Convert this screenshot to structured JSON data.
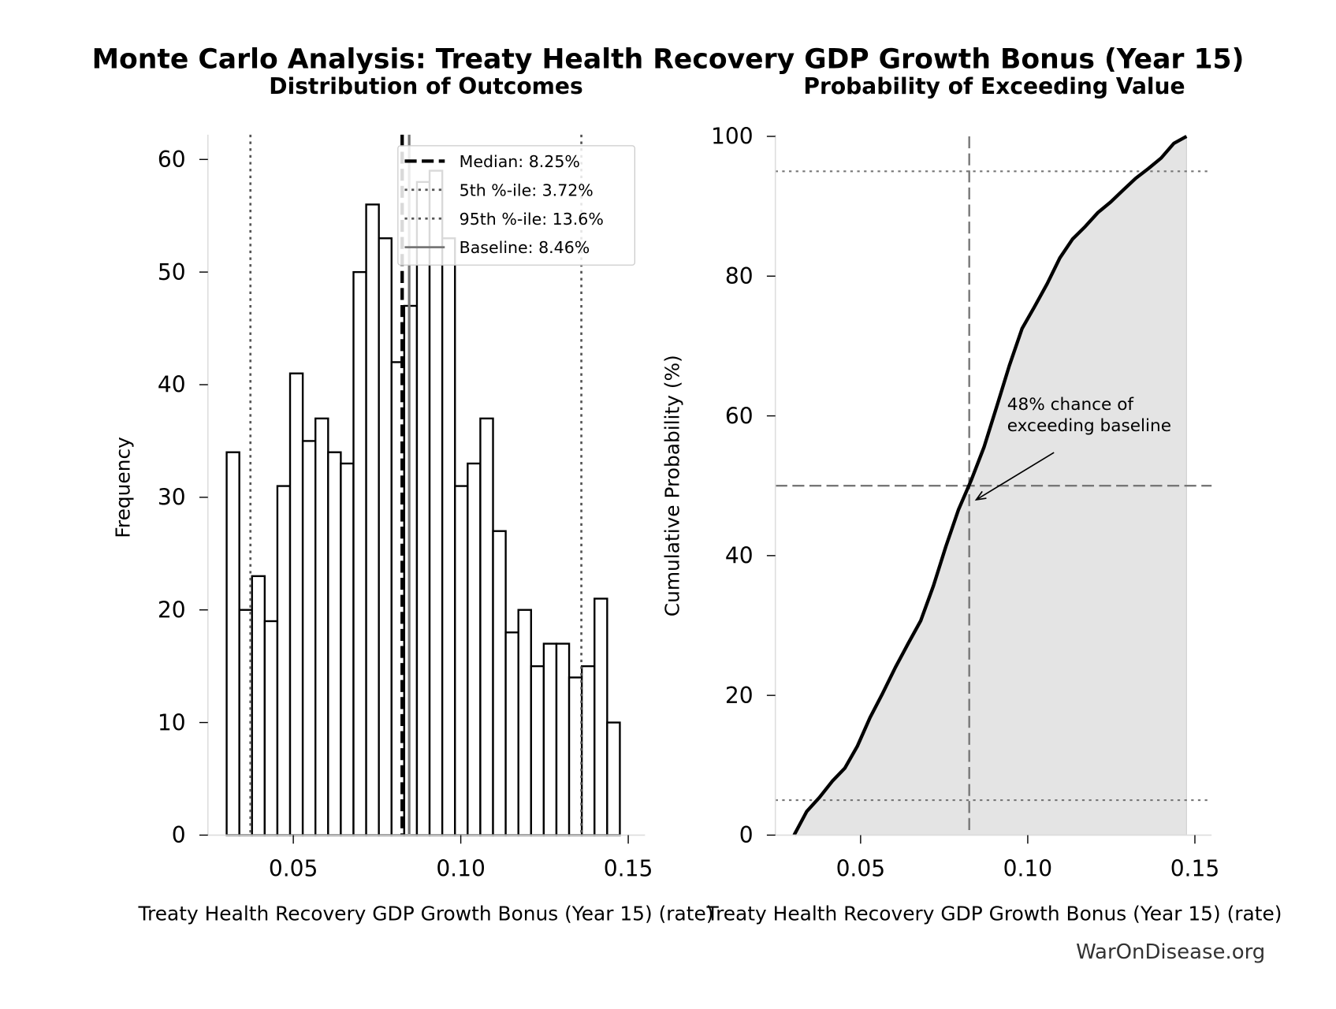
{
  "title": "Monte Carlo Analysis: Treaty Health Recovery GDP Growth Bonus (Year 15)",
  "watermark": "WarOnDisease.org",
  "colors": {
    "bar_edge": "#000000",
    "bar_fill": "#ffffff",
    "cdf_fill": "#e4e4e4",
    "ref_line": "#777777",
    "percentile_line": "#555555",
    "spine": "#dddddd"
  },
  "chart_data": [
    {
      "type": "bar",
      "title": "Distribution of Outcomes",
      "xlabel": "Treaty Health Recovery GDP Growth Bonus (Year 15) (rate)",
      "ylabel": "Frequency",
      "xlim": [
        0.0245,
        0.155
      ],
      "ylim": [
        0,
        62.2
      ],
      "xticks": [
        0.05,
        0.1,
        0.15
      ],
      "xtick_labels": [
        "0.05",
        "0.10",
        "0.15"
      ],
      "yticks": [
        0,
        10,
        20,
        30,
        40,
        50,
        60
      ],
      "ytick_labels": [
        "0",
        "10",
        "20",
        "30",
        "40",
        "50",
        "60"
      ],
      "bin_start": 0.0301,
      "bin_width": 0.003787,
      "values": [
        34,
        20,
        23,
        19,
        31,
        41,
        35,
        37,
        34,
        33,
        50,
        56,
        53,
        42,
        47,
        58,
        59,
        53,
        31,
        33,
        37,
        27,
        18,
        20,
        15,
        17,
        17,
        14,
        15,
        21,
        10
      ],
      "reference_lines": [
        {
          "label": "Median: 8.25%",
          "x": 0.0825,
          "style": "dashed",
          "color": "#000000"
        },
        {
          "label": "5th %-ile: 3.72%",
          "x": 0.0372,
          "style": "dotted",
          "color": "#555555"
        },
        {
          "label": "95th %-ile: 13.6%",
          "x": 0.136,
          "style": "dotted",
          "color": "#555555"
        },
        {
          "label": "Baseline: 8.46%",
          "x": 0.0846,
          "style": "solid",
          "color": "#777777"
        }
      ],
      "legend": "top-right",
      "grid": false
    },
    {
      "type": "area",
      "title": "Probability of Exceeding Value",
      "xlabel": "Treaty Health Recovery GDP Growth Bonus (Year 15) (rate)",
      "ylabel": "Cumulative Probability (%)",
      "xlim": [
        0.0245,
        0.155
      ],
      "ylim": [
        0,
        100
      ],
      "xticks": [
        0.05,
        0.1,
        0.15
      ],
      "xtick_labels": [
        "0.05",
        "0.10",
        "0.15"
      ],
      "yticks": [
        0,
        20,
        40,
        60,
        80,
        100
      ],
      "ytick_labels": [
        "0",
        "20",
        "40",
        "60",
        "80",
        "100"
      ],
      "x": [
        0.0301,
        0.0339,
        0.0377,
        0.0415,
        0.0453,
        0.049,
        0.0528,
        0.0566,
        0.0604,
        0.0642,
        0.068,
        0.0718,
        0.0755,
        0.0793,
        0.0831,
        0.0869,
        0.0907,
        0.0945,
        0.0983,
        0.102,
        0.1058,
        0.1096,
        0.1134,
        0.1172,
        0.121,
        0.1248,
        0.1285,
        0.1323,
        0.1361,
        0.1399,
        0.1437,
        0.1475
      ],
      "y": [
        0,
        3.4,
        5.4,
        7.7,
        9.6,
        12.7,
        16.8,
        20.3,
        24.0,
        27.4,
        30.7,
        35.7,
        41.3,
        46.6,
        50.8,
        55.5,
        61.3,
        67.2,
        72.5,
        75.6,
        78.9,
        82.6,
        85.3,
        87.1,
        89.1,
        90.6,
        92.3,
        94.0,
        95.4,
        96.9,
        99.0,
        100
      ],
      "reference_lines": [
        {
          "axis": "y",
          "value": 5,
          "style": "dotted"
        },
        {
          "axis": "y",
          "value": 50,
          "style": "dashed"
        },
        {
          "axis": "y",
          "value": 95,
          "style": "dotted"
        },
        {
          "axis": "x",
          "value": 0.0825,
          "style": "dashed"
        }
      ],
      "annotation": {
        "line1": "48% chance of",
        "line2": "exceeding baseline",
        "point_x": 0.0846,
        "point_y": 48
      },
      "grid": false
    }
  ]
}
